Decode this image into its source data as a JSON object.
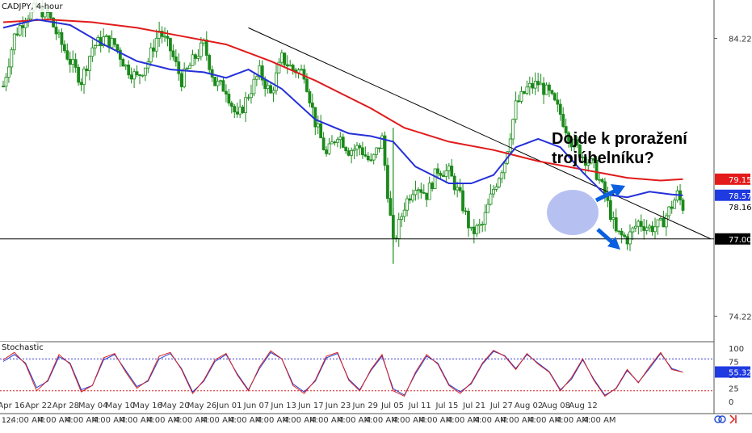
{
  "chart_title": "CADJPY, 4-hour",
  "annotation": {
    "line1": "Dojde k proražení",
    "line2": "trojúhelníku?"
  },
  "corner_label": "12:",
  "colors": {
    "candle": "#1b8a1b",
    "ma_fast": "#2430d8",
    "ma_slow": "#e11a1a",
    "trendline": "#000000",
    "highlight": "#7b8ee6",
    "arrow": "#0a5fe0",
    "tag_red": "#e41b1b",
    "tag_blue": "#1f3ae0",
    "tag_black": "#000000",
    "stoch_k": "#d62020",
    "stoch_d": "#2440d8",
    "stoch_hi": "#3b3bd0",
    "stoch_lo": "#d62020"
  },
  "chart_data": [
    {
      "type": "candlestick",
      "title": "CADJPY, 4-hour",
      "y_ticks": [
        "84.22",
        "74.22"
      ],
      "price_tags": [
        {
          "label": "79.15",
          "value": 79.15,
          "style": "red"
        },
        {
          "label": "78.57",
          "value": 78.57,
          "style": "blue"
        },
        {
          "label": "78.16",
          "value": 78.16,
          "style": "plain"
        },
        {
          "label": "77.00",
          "value": 77.0,
          "style": "black"
        }
      ],
      "ylim": [
        73.3,
        85.6
      ],
      "x_tick_labels": [
        "Apr 16",
        "Apr 22",
        "Apr 28",
        "May 04",
        "May 10",
        "May 16",
        "May 20",
        "May 26",
        "Jun 01",
        "Jun 07",
        "Jun 13",
        "Jun 17",
        "Jun 23",
        "Jun 29",
        "Jul 05",
        "Jul 11",
        "Jul 15",
        "Jul 21",
        "Jul 27",
        "Aug 02",
        "Aug 08",
        "Aug 12"
      ],
      "time_axis_label": "4:00 AM",
      "close_path": [
        [
          0,
          82.5
        ],
        [
          2,
          84.3
        ],
        [
          4,
          85.0
        ],
        [
          6,
          85.3
        ],
        [
          8,
          85.1
        ],
        [
          10,
          84.2
        ],
        [
          12,
          83.4
        ],
        [
          14,
          82.7
        ],
        [
          16,
          83.9
        ],
        [
          18,
          84.2
        ],
        [
          20,
          84.0
        ],
        [
          22,
          83.2
        ],
        [
          24,
          82.8
        ],
        [
          26,
          83.4
        ],
        [
          28,
          84.5
        ],
        [
          30,
          83.8
        ],
        [
          32,
          82.7
        ],
        [
          34,
          83.4
        ],
        [
          36,
          84.0
        ],
        [
          38,
          82.6
        ],
        [
          40,
          82.4
        ],
        [
          42,
          81.3
        ],
        [
          44,
          82.2
        ],
        [
          46,
          83.0
        ],
        [
          48,
          82.2
        ],
        [
          50,
          83.5
        ],
        [
          52,
          83.1
        ],
        [
          54,
          83.0
        ],
        [
          56,
          81.2
        ],
        [
          58,
          80.0
        ],
        [
          60,
          80.8
        ],
        [
          62,
          80.2
        ],
        [
          64,
          80.3
        ],
        [
          66,
          79.7
        ],
        [
          68,
          80.6
        ],
        [
          70,
          76.8
        ],
        [
          72,
          78.2
        ],
        [
          74,
          79.0
        ],
        [
          76,
          78.6
        ],
        [
          78,
          79.5
        ],
        [
          80,
          79.4
        ],
        [
          82,
          78.5
        ],
        [
          84,
          77.2
        ],
        [
          86,
          77.5
        ],
        [
          88,
          78.8
        ],
        [
          90,
          79.8
        ],
        [
          92,
          81.8
        ],
        [
          94,
          82.4
        ],
        [
          96,
          82.6
        ],
        [
          98,
          82.2
        ],
        [
          100,
          81.5
        ],
        [
          102,
          80.5
        ],
        [
          104,
          80.0
        ],
        [
          106,
          79.6
        ],
        [
          108,
          78.6
        ],
        [
          110,
          77.2
        ],
        [
          112,
          77.0
        ],
        [
          114,
          77.6
        ],
        [
          116,
          77.4
        ],
        [
          118,
          77.5
        ],
        [
          120,
          78.2
        ],
        [
          121,
          78.6
        ],
        [
          122,
          78.16
        ]
      ],
      "ma_fast_path": [
        [
          0,
          84.6
        ],
        [
          6,
          84.9
        ],
        [
          12,
          84.7
        ],
        [
          18,
          84.0
        ],
        [
          24,
          83.4
        ],
        [
          30,
          83.1
        ],
        [
          36,
          83.0
        ],
        [
          40,
          82.8
        ],
        [
          44,
          83.1
        ],
        [
          50,
          82.4
        ],
        [
          56,
          81.3
        ],
        [
          62,
          80.8
        ],
        [
          66,
          80.7
        ],
        [
          70,
          80.5
        ],
        [
          74,
          79.6
        ],
        [
          80,
          79.0
        ],
        [
          84,
          79.0
        ],
        [
          88,
          79.3
        ],
        [
          92,
          80.3
        ],
        [
          96,
          80.6
        ],
        [
          100,
          80.3
        ],
        [
          104,
          79.4
        ],
        [
          108,
          78.6
        ],
        [
          112,
          78.5
        ],
        [
          116,
          78.7
        ],
        [
          120,
          78.6
        ],
        [
          122,
          78.57
        ]
      ],
      "ma_slow_path": [
        [
          0,
          84.8
        ],
        [
          8,
          84.9
        ],
        [
          16,
          84.8
        ],
        [
          24,
          84.6
        ],
        [
          32,
          84.3
        ],
        [
          40,
          84.0
        ],
        [
          48,
          83.4
        ],
        [
          56,
          82.7
        ],
        [
          60,
          82.3
        ],
        [
          66,
          81.7
        ],
        [
          72,
          81.0
        ],
        [
          80,
          80.5
        ],
        [
          88,
          80.2
        ],
        [
          96,
          79.8
        ],
        [
          104,
          79.5
        ],
        [
          112,
          79.2
        ],
        [
          118,
          79.1
        ],
        [
          122,
          79.15
        ]
      ],
      "trendline": {
        "from": [
          44,
          84.6
        ],
        "to": [
          127,
          77.0
        ]
      },
      "support": 77.0,
      "stochastic": {
        "label": "Stochastic",
        "levels": [
          80,
          20
        ],
        "y_ticks": [
          "100",
          "75",
          "50",
          "25",
          "0"
        ],
        "last_value": "55.32",
        "k_path": [
          [
            0,
            78
          ],
          [
            2,
            92
          ],
          [
            4,
            70
          ],
          [
            6,
            20
          ],
          [
            8,
            40
          ],
          [
            10,
            88
          ],
          [
            12,
            70
          ],
          [
            14,
            18
          ],
          [
            16,
            30
          ],
          [
            18,
            82
          ],
          [
            20,
            90
          ],
          [
            22,
            55
          ],
          [
            24,
            25
          ],
          [
            26,
            40
          ],
          [
            28,
            85
          ],
          [
            30,
            92
          ],
          [
            32,
            60
          ],
          [
            34,
            15
          ],
          [
            36,
            40
          ],
          [
            38,
            78
          ],
          [
            40,
            90
          ],
          [
            42,
            50
          ],
          [
            44,
            20
          ],
          [
            46,
            65
          ],
          [
            48,
            95
          ],
          [
            50,
            80
          ],
          [
            52,
            30
          ],
          [
            54,
            15
          ],
          [
            56,
            40
          ],
          [
            58,
            85
          ],
          [
            60,
            92
          ],
          [
            62,
            40
          ],
          [
            64,
            20
          ],
          [
            66,
            60
          ],
          [
            68,
            88
          ],
          [
            70,
            20
          ],
          [
            72,
            10
          ],
          [
            74,
            55
          ],
          [
            76,
            88
          ],
          [
            78,
            70
          ],
          [
            80,
            30
          ],
          [
            82,
            15
          ],
          [
            84,
            35
          ],
          [
            86,
            72
          ],
          [
            88,
            96
          ],
          [
            90,
            85
          ],
          [
            92,
            60
          ],
          [
            94,
            90
          ],
          [
            96,
            70
          ],
          [
            98,
            55
          ],
          [
            100,
            20
          ],
          [
            102,
            45
          ],
          [
            104,
            80
          ],
          [
            106,
            40
          ],
          [
            108,
            10
          ],
          [
            110,
            25
          ],
          [
            112,
            60
          ],
          [
            114,
            35
          ],
          [
            116,
            65
          ],
          [
            118,
            92
          ],
          [
            120,
            60
          ],
          [
            122,
            55
          ]
        ],
        "d_path": [
          [
            0,
            75
          ],
          [
            2,
            88
          ],
          [
            4,
            72
          ],
          [
            6,
            26
          ],
          [
            8,
            38
          ],
          [
            10,
            84
          ],
          [
            12,
            72
          ],
          [
            14,
            22
          ],
          [
            16,
            30
          ],
          [
            18,
            78
          ],
          [
            20,
            88
          ],
          [
            22,
            58
          ],
          [
            24,
            28
          ],
          [
            26,
            38
          ],
          [
            28,
            80
          ],
          [
            30,
            90
          ],
          [
            32,
            62
          ],
          [
            34,
            18
          ],
          [
            36,
            38
          ],
          [
            38,
            75
          ],
          [
            40,
            88
          ],
          [
            42,
            52
          ],
          [
            44,
            22
          ],
          [
            46,
            62
          ],
          [
            48,
            92
          ],
          [
            50,
            80
          ],
          [
            52,
            33
          ],
          [
            54,
            18
          ],
          [
            56,
            38
          ],
          [
            58,
            82
          ],
          [
            60,
            90
          ],
          [
            62,
            42
          ],
          [
            64,
            22
          ],
          [
            66,
            58
          ],
          [
            68,
            85
          ],
          [
            70,
            24
          ],
          [
            72,
            12
          ],
          [
            74,
            52
          ],
          [
            76,
            85
          ],
          [
            78,
            72
          ],
          [
            80,
            32
          ],
          [
            82,
            18
          ],
          [
            84,
            33
          ],
          [
            86,
            70
          ],
          [
            88,
            94
          ],
          [
            90,
            86
          ],
          [
            92,
            62
          ],
          [
            94,
            88
          ],
          [
            96,
            72
          ],
          [
            98,
            56
          ],
          [
            100,
            22
          ],
          [
            102,
            42
          ],
          [
            104,
            78
          ],
          [
            106,
            42
          ],
          [
            108,
            12
          ],
          [
            110,
            24
          ],
          [
            112,
            58
          ],
          [
            114,
            36
          ],
          [
            116,
            62
          ],
          [
            118,
            90
          ],
          [
            120,
            62
          ],
          [
            122,
            55
          ]
        ]
      }
    }
  ]
}
